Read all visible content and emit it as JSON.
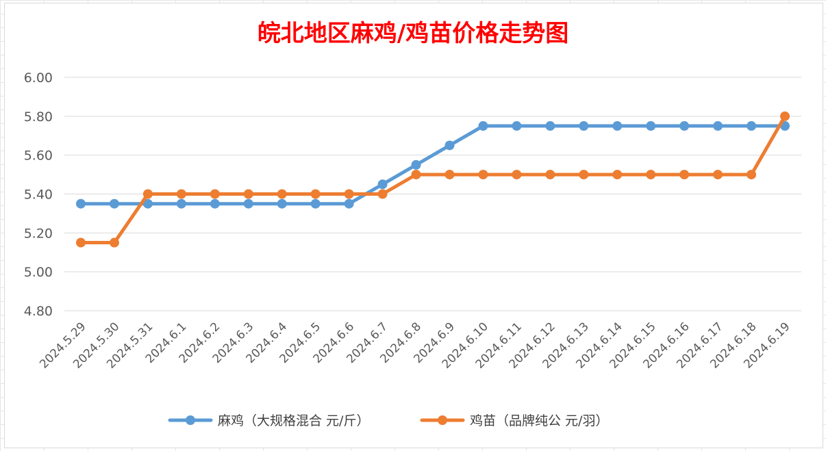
{
  "chart_data": {
    "type": "line",
    "title": "皖北地区麻鸡/鸡苗价格走势图",
    "title_color": "#ff0000",
    "categories": [
      "2024.5.29",
      "2024.5.30",
      "2024.5.31",
      "2024.6.1",
      "2024.6.2",
      "2024.6.3",
      "2024.6.4",
      "2024.6.5",
      "2024.6.6",
      "2024.6.7",
      "2024.6.8",
      "2024.6.9",
      "2024.6.10",
      "2024.6.11",
      "2024.6.12",
      "2024.6.13",
      "2024.6.14",
      "2024.6.15",
      "2024.6.16",
      "2024.6.17",
      "2024.6.18",
      "2024.6.19"
    ],
    "series": [
      {
        "name": "麻鸡（大规格混合 元/斤）",
        "color": "#5b9bd5",
        "values": [
          5.35,
          5.35,
          5.35,
          5.35,
          5.35,
          5.35,
          5.35,
          5.35,
          5.35,
          5.45,
          5.55,
          5.65,
          5.75,
          5.75,
          5.75,
          5.75,
          5.75,
          5.75,
          5.75,
          5.75,
          5.75,
          5.75
        ]
      },
      {
        "name": "鸡苗（品牌纯公 元/羽）",
        "color": "#ed7d31",
        "values": [
          5.15,
          5.15,
          5.4,
          5.4,
          5.4,
          5.4,
          5.4,
          5.4,
          5.4,
          5.4,
          5.5,
          5.5,
          5.5,
          5.5,
          5.5,
          5.5,
          5.5,
          5.5,
          5.5,
          5.5,
          5.5,
          5.8
        ]
      }
    ],
    "ylim": [
      4.8,
      6.0
    ],
    "yticks": [
      "4.80",
      "5.00",
      "5.20",
      "5.40",
      "5.60",
      "5.80",
      "6.00"
    ],
    "grid": true,
    "legend_position": "bottom"
  }
}
